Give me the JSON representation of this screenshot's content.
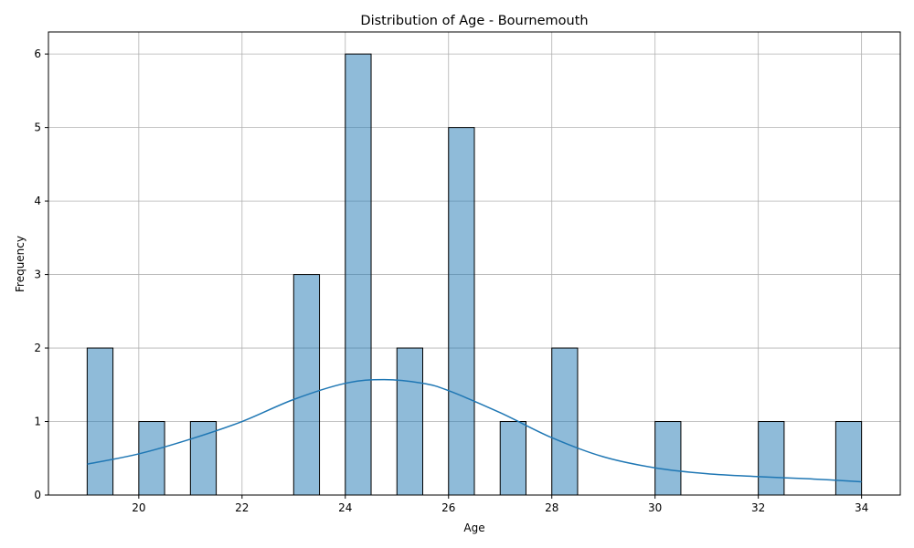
{
  "chart_data": {
    "type": "bar",
    "title": "Distribution of Age - Bournemouth",
    "xlabel": "Age",
    "ylabel": "Frequency",
    "xlim": [
      18.25,
      34.75
    ],
    "ylim": [
      0,
      6.3
    ],
    "xticks": [
      20,
      22,
      24,
      26,
      28,
      30,
      32,
      34
    ],
    "yticks": [
      0,
      1,
      2,
      3,
      4,
      5,
      6
    ],
    "grid": true,
    "bin_width": 0.5,
    "bins": [
      {
        "start": 19.0,
        "count": 2
      },
      {
        "start": 20.0,
        "count": 1
      },
      {
        "start": 21.0,
        "count": 1
      },
      {
        "start": 23.0,
        "count": 3
      },
      {
        "start": 24.0,
        "count": 6
      },
      {
        "start": 25.0,
        "count": 2
      },
      {
        "start": 26.0,
        "count": 5
      },
      {
        "start": 27.0,
        "count": 1
      },
      {
        "start": 28.0,
        "count": 2
      },
      {
        "start": 30.0,
        "count": 1
      },
      {
        "start": 32.0,
        "count": 1
      },
      {
        "start": 33.5,
        "count": 1
      }
    ],
    "kde": {
      "x": [
        19,
        20,
        21,
        22,
        23,
        24,
        24.75,
        25.5,
        26,
        27,
        28,
        29,
        30,
        31,
        32,
        33,
        34
      ],
      "y": [
        0.42,
        0.56,
        0.76,
        1.0,
        1.3,
        1.52,
        1.57,
        1.52,
        1.42,
        1.12,
        0.78,
        0.52,
        0.37,
        0.29,
        0.25,
        0.22,
        0.18
      ]
    },
    "colors": {
      "bar_fill": "#1f77b4",
      "kde_line": "#1f77b4",
      "grid": "#b0b0b0"
    }
  }
}
